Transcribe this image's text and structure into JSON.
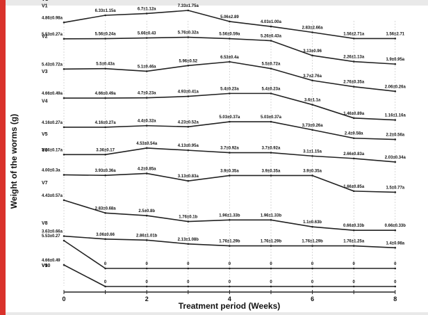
{
  "chart_data": {
    "type": "line",
    "title": "",
    "xlabel": "Treatment period (Weeks)",
    "ylabel": "Weight of the worms (g)",
    "x": [
      0,
      1,
      2,
      3,
      4,
      5,
      6,
      7,
      8
    ],
    "x_ticks": [
      "0",
      "2",
      "4",
      "6",
      "8"
    ],
    "xlim": [
      0,
      8
    ],
    "grid": "vertical dashed",
    "legend": "none (series labelled at left)",
    "line_color": "#222222",
    "series": [
      {
        "name": "VC",
        "values": [
          4.86,
          6.33,
          6.7,
          7.33,
          5.06,
          4.03,
          2.83,
          1.56,
          1.56
        ],
        "labels": [
          "4.86±0.98a",
          "6.33±1.15a",
          "6.7±1.12a",
          "7.33±1.75a",
          "5.06±2.89",
          "4.03±1.00a",
          "2.83±2.66a",
          "1.56±2.71a",
          "1.56±2.71"
        ]
      },
      {
        "name": "V1",
        "values": [
          5.53,
          5.56,
          5.66,
          5.76,
          5.56,
          5.26,
          3.13,
          2.26,
          1.9
        ],
        "labels": [
          "5.53±0.27a",
          "5.56±0.24a",
          "5.66±0.43",
          "5.76±0.32a",
          "5.56±0.59a",
          "5.26±0.43a",
          "3.13±0.96",
          "2.26±1.13a",
          "1.9±0.95a"
        ]
      },
      {
        "name": "V2",
        "values": [
          5.43,
          5.5,
          5.1,
          5.96,
          6.53,
          5.5,
          3.7,
          2.76,
          2.06
        ],
        "labels": [
          "5.43±0.72a",
          "5.5±0.43a",
          "5.1±0.46a",
          "5.96±0.52",
          "6.53±0.4a",
          "5.5±0.72a",
          "3.7±2.76a",
          "2.76±0.35a",
          "2.06±0.26a"
        ]
      },
      {
        "name": "V3",
        "values": [
          4.66,
          4.66,
          4.7,
          4.93,
          5.4,
          5.4,
          3.6,
          1.46,
          1.16
        ],
        "labels": [
          "4.66±0.49a",
          "4.66±0.49a",
          "4.7±0.23a",
          "4.93±0.41a",
          "5.4±0.23a",
          "5.4±0.23a",
          "3.6±1.1a",
          "1.46±0.89a",
          "1.16±1.16a"
        ]
      },
      {
        "name": "V4",
        "values": [
          4.16,
          4.16,
          4.4,
          4.23,
          5.03,
          5.03,
          3.73,
          2.4,
          2.2
        ],
        "labels": [
          "4.16±0.27a",
          "4.16±0.27a",
          "4.4±0.32a",
          "4.23±0.52a",
          "5.03±0.37a",
          "5.03±0.37a",
          "3.73±0.26a",
          "2.4±0.58a",
          "2.2±0.56a"
        ]
      },
      {
        "name": "V5",
        "values": [
          3.36,
          3.36,
          4.53,
          4.13,
          3.7,
          3.7,
          3.1,
          2.66,
          2.03
        ],
        "labels": [
          "3.36±0.17a",
          "3.36±0.17",
          "4.53±0.54a",
          "4.13±0.95a",
          "3.7±0.92a",
          "3.7±0.92a",
          "3.1±1.15a",
          "2.66±0.83a",
          "2.03±0.34a"
        ]
      },
      {
        "name": "V6",
        "values": [
          4.0,
          3.93,
          4.2,
          3.13,
          3.9,
          3.9,
          3.9,
          1.66,
          1.5
        ],
        "labels": [
          "4.00±0.3a",
          "3.93±0.36a",
          "4.2±0.85a",
          "3.13±0.83a",
          "3.9±0.35a",
          "3.9±0.35a",
          "3.9±0.35a",
          "1.66±0.85a",
          "1.5±0.77a"
        ]
      },
      {
        "name": "V7",
        "values": [
          4.43,
          2.83,
          2.5,
          1.76,
          1.96,
          1.96,
          1.1,
          0.66,
          0.66
        ],
        "labels": [
          "4.43±0.57a",
          "2.83±0.68a",
          "2.5±0.8b",
          "1.76±0.1b",
          "1.96±1.33b",
          "1.96±1.33b",
          "1.1±0.63b",
          "0.66±0.33b",
          "0.66±0.33b"
        ]
      },
      {
        "name": "V8",
        "values": [
          3.63,
          3.06,
          2.86,
          2.13,
          1.76,
          1.76,
          1.76,
          1.76,
          1.4
        ],
        "labels": [
          "3.63±0.66a",
          "3.06±0.66",
          "2.86±1.01b",
          "2.13±1.08b",
          "1.76±1.29b",
          "1.76±1.29b",
          "1.76±1.29b",
          "1.76±1.25a",
          "1.4±0.98a"
        ]
      },
      {
        "name": "V9",
        "values": [
          5.53,
          0,
          0,
          0,
          0,
          0,
          0,
          0,
          0
        ],
        "labels": [
          "5.53±0.27",
          "0",
          "0",
          "0",
          "0",
          "0",
          "0",
          "0",
          "0"
        ]
      },
      {
        "name": "V10",
        "values": [
          4.66,
          0,
          0,
          0,
          0,
          0,
          0,
          0,
          0
        ],
        "labels": [
          "4.66±0.49",
          "0",
          "0",
          "0",
          "0",
          "0",
          "0",
          "0",
          "0"
        ]
      }
    ]
  }
}
